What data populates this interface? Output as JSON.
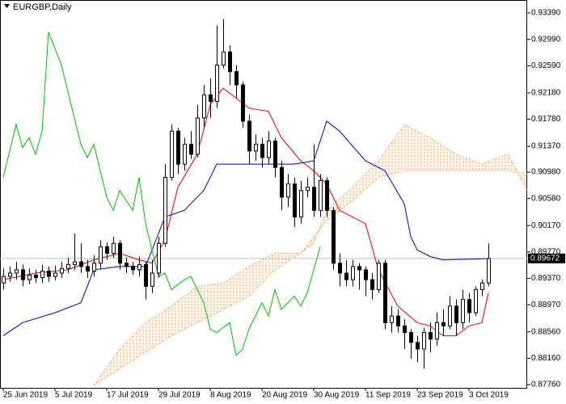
{
  "chart_data": {
    "type": "candlestick",
    "title": "EURGBP,Daily",
    "color": "#000000",
    "xlim": [
      -0.5,
      81
    ],
    "ylim": [
      0.87712,
      0.93586
    ],
    "xticks": [
      {
        "value": 0,
        "label": "25 Jun 2019"
      },
      {
        "value": 8,
        "label": "5 Jul 2019"
      },
      {
        "value": 16,
        "label": "17 Jul 2019"
      },
      {
        "value": 24,
        "label": "29 Jul 2019"
      },
      {
        "value": 32,
        "label": "8 Aug 2019"
      },
      {
        "value": 40,
        "label": "20 Aug 2019"
      },
      {
        "value": 48,
        "label": "30 Aug 2019"
      },
      {
        "value": 56,
        "label": "11 Sep 2019"
      },
      {
        "value": 64,
        "label": "23 Sep 2019"
      },
      {
        "value": 72,
        "label": "3 Oct 2019"
      }
    ],
    "yticks": [
      {
        "value": 0.9339,
        "label": "0.93390"
      },
      {
        "value": 0.9299,
        "label": "0.92990"
      },
      {
        "value": 0.9259,
        "label": "0.92590"
      },
      {
        "value": 0.9218,
        "label": "0.92180"
      },
      {
        "value": 0.9178,
        "label": "0.91780"
      },
      {
        "value": 0.9137,
        "label": "0.91370"
      },
      {
        "value": 0.9098,
        "label": "0.90980"
      },
      {
        "value": 0.9058,
        "label": "0.90580"
      },
      {
        "value": 0.9017,
        "label": "0.90170"
      },
      {
        "value": 0.8977,
        "label": "0.89770"
      },
      {
        "value": 0.8937,
        "label": "0.89370"
      },
      {
        "value": 0.8897,
        "label": "0.88970"
      },
      {
        "value": 0.8856,
        "label": "0.88560"
      },
      {
        "value": 0.8816,
        "label": "0.88160"
      },
      {
        "value": 0.8776,
        "label": "0.87760"
      }
    ],
    "last_price": 0.89672,
    "last_price_color": "#c0c0c0",
    "x": [
      0,
      1,
      2,
      3,
      4,
      5,
      6,
      7,
      8,
      9,
      10,
      11,
      12,
      13,
      14,
      15,
      16,
      17,
      18,
      19,
      20,
      21,
      22,
      23,
      24,
      25,
      26,
      27,
      28,
      29,
      30,
      31,
      32,
      33,
      34,
      35,
      36,
      37,
      38,
      39,
      40,
      41,
      42,
      43,
      44,
      45,
      46,
      47,
      48,
      49,
      50,
      51,
      52,
      53,
      54,
      55,
      56,
      57,
      58,
      59,
      60,
      61,
      62,
      63,
      64,
      65,
      66,
      67,
      68,
      69,
      70,
      71,
      72,
      73,
      74,
      75
    ],
    "open": [
      0.893,
      0.894,
      0.8945,
      0.895,
      0.8935,
      0.8942,
      0.8938,
      0.8948,
      0.894,
      0.8945,
      0.8952,
      0.8958,
      0.8962,
      0.8955,
      0.8948,
      0.896,
      0.8985,
      0.8975,
      0.899,
      0.896,
      0.8955,
      0.895,
      0.8958,
      0.8925,
      0.8945,
      0.899,
      0.909,
      0.916,
      0.911,
      0.914,
      0.9125,
      0.918,
      0.9215,
      0.9205,
      0.926,
      0.928,
      0.925,
      0.923,
      0.9175,
      0.913,
      0.914,
      0.912,
      0.9145,
      0.9105,
      0.906,
      0.908,
      0.903,
      0.907,
      0.9075,
      0.904,
      0.9085,
      0.904,
      0.896,
      0.8945,
      0.8935,
      0.8955,
      0.895,
      0.8935,
      0.892,
      0.896,
      0.887,
      0.888,
      0.8865,
      0.8855,
      0.884,
      0.883,
      0.8855,
      0.8845,
      0.887,
      0.8865,
      0.8895,
      0.887,
      0.8905,
      0.8885,
      0.892,
      0.893
    ],
    "high": [
      0.8952,
      0.8955,
      0.8962,
      0.8958,
      0.8952,
      0.895,
      0.8958,
      0.8955,
      0.8956,
      0.8962,
      0.8968,
      0.9005,
      0.899,
      0.8965,
      0.8972,
      0.8995,
      0.8992,
      0.9,
      0.8995,
      0.8968,
      0.8962,
      0.897,
      0.8962,
      0.8965,
      0.9,
      0.911,
      0.917,
      0.9165,
      0.915,
      0.916,
      0.92,
      0.923,
      0.924,
      0.932,
      0.933,
      0.929,
      0.926,
      0.9235,
      0.9185,
      0.9155,
      0.915,
      0.916,
      0.915,
      0.9115,
      0.9095,
      0.909,
      0.9085,
      0.909,
      0.914,
      0.9095,
      0.909,
      0.9045,
      0.8975,
      0.8965,
      0.8965,
      0.896,
      0.8955,
      0.8945,
      0.8965,
      0.8965,
      0.8895,
      0.889,
      0.8875,
      0.886,
      0.885,
      0.8862,
      0.887,
      0.8885,
      0.889,
      0.891,
      0.8905,
      0.892,
      0.8915,
      0.8925,
      0.8935,
      0.899
    ],
    "low": [
      0.892,
      0.8932,
      0.8935,
      0.8925,
      0.8928,
      0.893,
      0.893,
      0.8932,
      0.8934,
      0.8938,
      0.8945,
      0.895,
      0.8945,
      0.8938,
      0.894,
      0.895,
      0.8965,
      0.8968,
      0.895,
      0.8945,
      0.8942,
      0.894,
      0.8905,
      0.8915,
      0.8938,
      0.8985,
      0.9085,
      0.9095,
      0.91,
      0.9118,
      0.912,
      0.9165,
      0.918,
      0.9195,
      0.9255,
      0.923,
      0.921,
      0.9165,
      0.911,
      0.9115,
      0.9105,
      0.911,
      0.909,
      0.904,
      0.9045,
      0.9015,
      0.902,
      0.906,
      0.903,
      0.903,
      0.903,
      0.895,
      0.8925,
      0.8925,
      0.8925,
      0.892,
      0.891,
      0.8905,
      0.8915,
      0.886,
      0.8855,
      0.8855,
      0.883,
      0.8815,
      0.881,
      0.88,
      0.8825,
      0.8835,
      0.885,
      0.886,
      0.885,
      0.886,
      0.887,
      0.888,
      0.891,
      0.8925
    ],
    "close": [
      0.894,
      0.8945,
      0.895,
      0.8935,
      0.8942,
      0.8938,
      0.8948,
      0.894,
      0.8945,
      0.8952,
      0.8958,
      0.8962,
      0.8955,
      0.8948,
      0.896,
      0.8985,
      0.8975,
      0.899,
      0.896,
      0.8955,
      0.895,
      0.8958,
      0.8925,
      0.8945,
      0.899,
      0.909,
      0.916,
      0.911,
      0.914,
      0.9125,
      0.918,
      0.9215,
      0.9205,
      0.926,
      0.928,
      0.925,
      0.923,
      0.9175,
      0.913,
      0.914,
      0.912,
      0.9145,
      0.9105,
      0.906,
      0.908,
      0.903,
      0.907,
      0.9075,
      0.904,
      0.9085,
      0.904,
      0.896,
      0.8945,
      0.8935,
      0.8955,
      0.895,
      0.8935,
      0.892,
      0.896,
      0.887,
      0.888,
      0.8865,
      0.8855,
      0.884,
      0.883,
      0.8855,
      0.8845,
      0.887,
      0.8865,
      0.8895,
      0.887,
      0.8905,
      0.8885,
      0.892,
      0.893,
      0.8967
    ],
    "indicators": [
      {
        "color": "#e00000",
        "x": [
          0,
          5,
          10,
          14,
          18,
          21,
          23,
          25,
          27,
          30,
          32,
          34,
          36,
          38,
          41,
          43,
          46,
          48,
          50,
          52,
          56,
          58,
          61,
          64,
          66,
          68,
          70,
          72,
          74,
          75
        ],
        "values": [
          0.8935,
          0.8945,
          0.895,
          0.8965,
          0.8975,
          0.8965,
          0.896,
          0.8995,
          0.9075,
          0.9125,
          0.92,
          0.9225,
          0.921,
          0.9195,
          0.919,
          0.915,
          0.9115,
          0.91,
          0.908,
          0.904,
          0.902,
          0.895,
          0.8895,
          0.887,
          0.8865,
          0.885,
          0.885,
          0.8865,
          0.887,
          0.8915
        ]
      },
      {
        "color": "#0000c0",
        "x": [
          0,
          3,
          8,
          12,
          14,
          18,
          22,
          25,
          28,
          31,
          33,
          40,
          45,
          48,
          50,
          52,
          56,
          59,
          62,
          63,
          64,
          66,
          68,
          75
        ],
        "values": [
          0.885,
          0.887,
          0.8885,
          0.89,
          0.895,
          0.8955,
          0.8955,
          0.903,
          0.904,
          0.907,
          0.911,
          0.911,
          0.911,
          0.9115,
          0.9175,
          0.916,
          0.9115,
          0.91,
          0.905,
          0.9,
          0.898,
          0.897,
          0.8965,
          0.8967
        ]
      },
      {
        "color": "#00c000",
        "x": [
          0,
          2,
          3,
          4,
          5,
          6,
          7,
          9,
          10,
          12,
          13,
          14,
          16,
          17,
          18,
          20,
          21,
          22,
          24,
          25,
          26,
          28,
          29,
          31,
          32,
          33,
          35,
          36,
          37,
          38,
          40,
          41,
          42,
          43,
          45,
          46,
          47,
          48,
          49
        ],
        "values": [
          0.909,
          0.917,
          0.9135,
          0.915,
          0.9125,
          0.916,
          0.931,
          0.926,
          0.922,
          0.914,
          0.912,
          0.914,
          0.906,
          0.904,
          0.907,
          0.904,
          0.909,
          0.902,
          0.894,
          0.8945,
          0.892,
          0.8935,
          0.894,
          0.89,
          0.886,
          0.8855,
          0.887,
          0.882,
          0.883,
          0.886,
          0.89,
          0.888,
          0.892,
          0.889,
          0.891,
          0.8895,
          0.8915,
          0.895,
          0.8985
        ]
      }
    ],
    "cloud": {
      "color": "#f0a060",
      "x": [
        14,
        18,
        22,
        26,
        30,
        34,
        38,
        42,
        46,
        48,
        50,
        54,
        58,
        62,
        66,
        70,
        74,
        78,
        81
      ],
      "span_a": [
        0.8775,
        0.883,
        0.887,
        0.8895,
        0.8925,
        0.893,
        0.8955,
        0.8975,
        0.8975,
        0.899,
        0.904,
        0.9075,
        0.9115,
        0.917,
        0.915,
        0.9125,
        0.911,
        0.9125,
        0.907
      ],
      "span_b": [
        0.8775,
        0.88,
        0.8825,
        0.885,
        0.887,
        0.889,
        0.891,
        0.895,
        0.8975,
        0.9,
        0.9025,
        0.9055,
        0.909,
        0.91,
        0.91,
        0.91,
        0.91,
        0.91,
        0.9095
      ]
    }
  }
}
